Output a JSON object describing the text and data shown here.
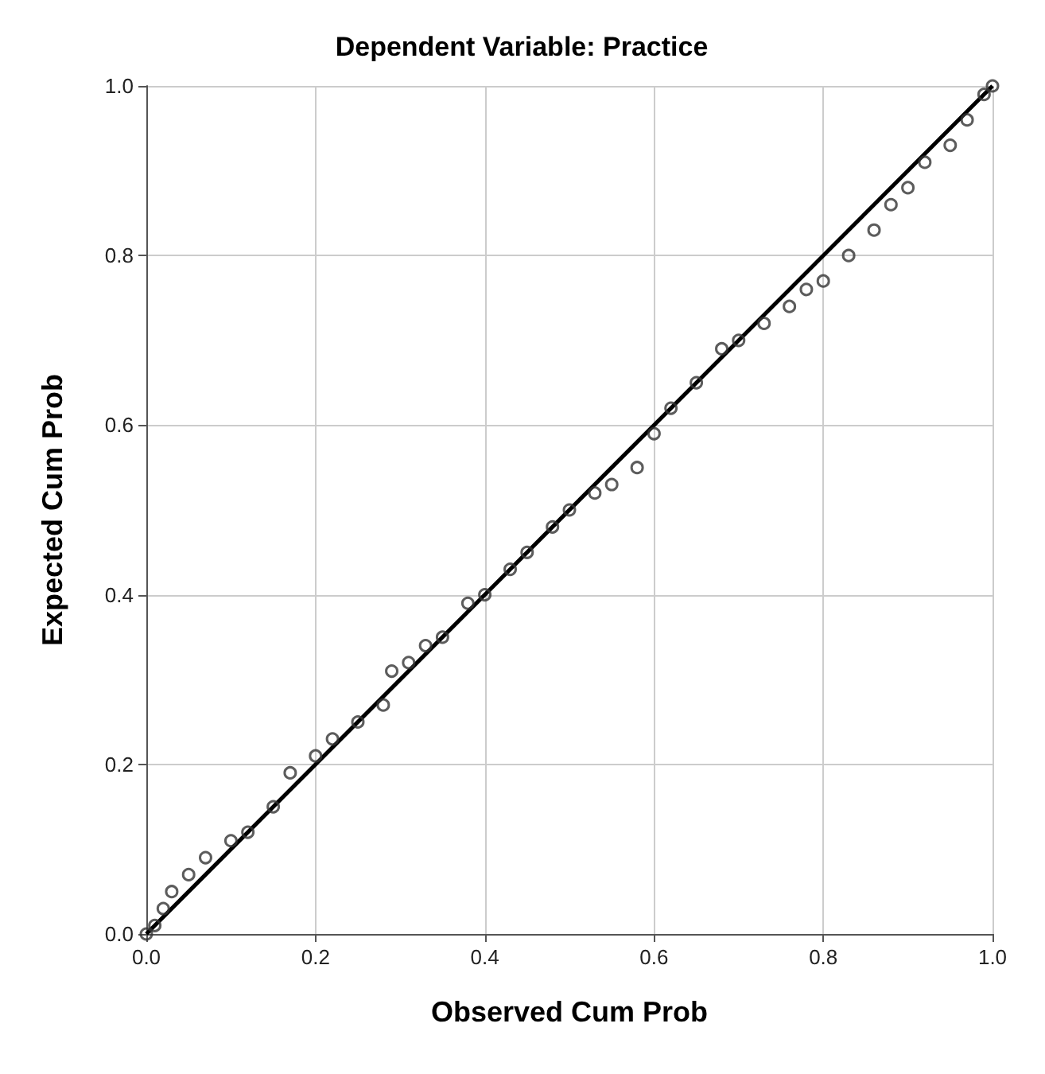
{
  "chart_data": {
    "type": "scatter",
    "title": "Dependent Variable: Practice",
    "xlabel": "Observed Cum Prob",
    "ylabel": "Expected Cum Prob",
    "xlim": [
      0,
      1
    ],
    "ylim": [
      0,
      1
    ],
    "xticks": [
      {
        "value": 0,
        "label": "0.0"
      },
      0.2,
      0.4,
      0.6,
      0.8,
      {
        "value": 1,
        "label": "1.0"
      }
    ],
    "yticks": [
      {
        "value": 0,
        "label": "0.0"
      },
      0.2,
      0.4,
      0.6,
      0.8,
      {
        "value": 1,
        "label": "1.0"
      }
    ],
    "grid": true,
    "marker": "circle",
    "series": [
      {
        "color": "#333333",
        "x": [
          0,
          0.01,
          0.02,
          0.03,
          0.05,
          0.07,
          0.1,
          0.12,
          0.15,
          0.17,
          0.2,
          0.22,
          0.25,
          0.28,
          0.29,
          0.31,
          0.33,
          0.35,
          0.38,
          0.4,
          0.43,
          0.45,
          0.48,
          0.5,
          0.53,
          0.55,
          0.58,
          0.6,
          0.62,
          0.65,
          0.68,
          0.7,
          0.73,
          0.76,
          0.78,
          0.8,
          0.83,
          0.86,
          0.88,
          0.9,
          0.92,
          0.95,
          0.97,
          0.99,
          1
        ],
        "values": [
          0,
          0.01,
          0.03,
          0.05,
          0.07,
          0.09,
          0.11,
          0.12,
          0.15,
          0.19,
          0.21,
          0.23,
          0.25,
          0.27,
          0.31,
          0.32,
          0.34,
          0.35,
          0.39,
          0.4,
          0.43,
          0.45,
          0.48,
          0.5,
          0.52,
          0.53,
          0.55,
          0.59,
          0.62,
          0.65,
          0.69,
          0.7,
          0.72,
          0.74,
          0.76,
          0.77,
          0.8,
          0.83,
          0.86,
          0.88,
          0.91,
          0.93,
          0.96,
          0.99,
          1
        ]
      },
      {
        "type": "line",
        "color": "#000000",
        "x": [
          0,
          1
        ],
        "values": [
          0,
          1
        ],
        "marker": "none"
      }
    ]
  }
}
